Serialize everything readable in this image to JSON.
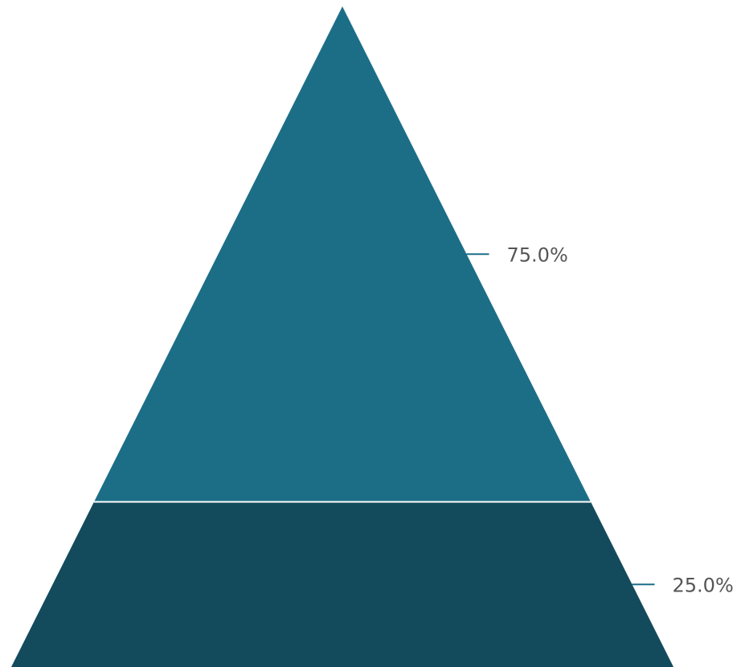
{
  "chart_data": {
    "type": "pyramid",
    "title": "",
    "slices": [
      {
        "label": "75.0%",
        "value": 75.0,
        "color": "#1c6e87"
      },
      {
        "label": "25.0%",
        "value": 25.0,
        "color": "#134b5c"
      }
    ],
    "divider_color": "#ffffff",
    "leader_line_color": "#1c6e87",
    "label_color": "#555555"
  }
}
